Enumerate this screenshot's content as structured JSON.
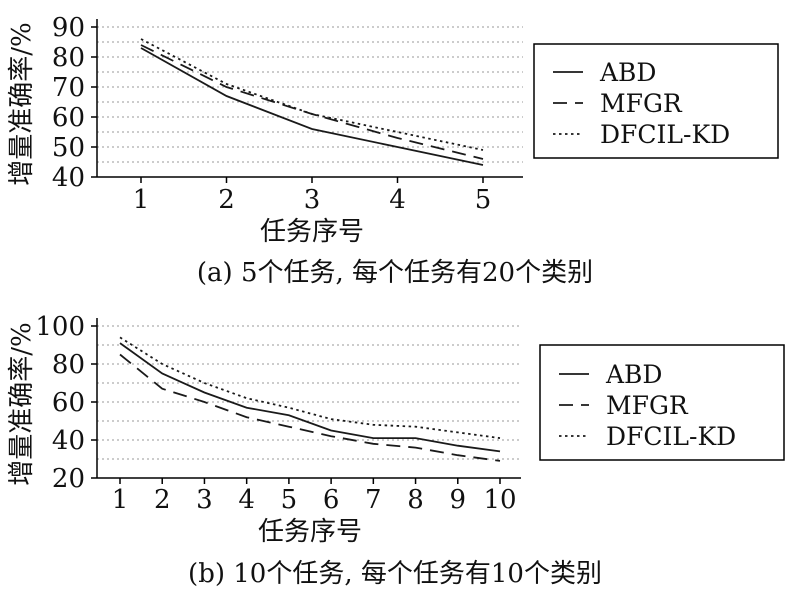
{
  "chart_data": [
    {
      "type": "line",
      "title": "",
      "caption": "(a) 5个任务, 每个任务有20个类别",
      "xlabel": "任务序号",
      "ylabel": "增量准确率/%",
      "x": [
        1,
        2,
        3,
        4,
        5
      ],
      "xticks": [
        "1",
        "2",
        "3",
        "4",
        "5"
      ],
      "yticks": [
        "40",
        "50",
        "60",
        "70",
        "80",
        "90"
      ],
      "ylim": [
        40,
        90
      ],
      "grid": true,
      "legend_position": "right",
      "series": [
        {
          "name": "ABD",
          "style": "solid",
          "values": [
            83,
            67,
            56,
            50,
            44
          ]
        },
        {
          "name": "MFGR",
          "style": "dashed",
          "values": [
            84,
            70,
            61,
            53,
            46
          ]
        },
        {
          "name": "DFCIL-KD",
          "style": "dotted",
          "values": [
            86,
            71,
            61,
            55,
            49
          ]
        }
      ]
    },
    {
      "type": "line",
      "title": "",
      "caption": "(b) 10个任务, 每个任务有10个类别",
      "xlabel": "任务序号",
      "ylabel": "增量准确率/%",
      "x": [
        1,
        2,
        3,
        4,
        5,
        6,
        7,
        8,
        9,
        10
      ],
      "xticks": [
        "1",
        "2",
        "3",
        "4",
        "5",
        "6",
        "7",
        "8",
        "9",
        "10"
      ],
      "yticks": [
        "20",
        "40",
        "60",
        "80",
        "100"
      ],
      "ylim": [
        20,
        100
      ],
      "grid": true,
      "legend_position": "right",
      "series": [
        {
          "name": "ABD",
          "style": "solid",
          "values": [
            91,
            75,
            65,
            57,
            53,
            45,
            41,
            41,
            37,
            34
          ]
        },
        {
          "name": "MFGR",
          "style": "dashed",
          "values": [
            85,
            67,
            60,
            52,
            47,
            42,
            38,
            36,
            32,
            29
          ]
        },
        {
          "name": "DFCIL-KD",
          "style": "dotted",
          "values": [
            94,
            80,
            70,
            62,
            57,
            51,
            48,
            47,
            44,
            41
          ]
        }
      ]
    }
  ]
}
